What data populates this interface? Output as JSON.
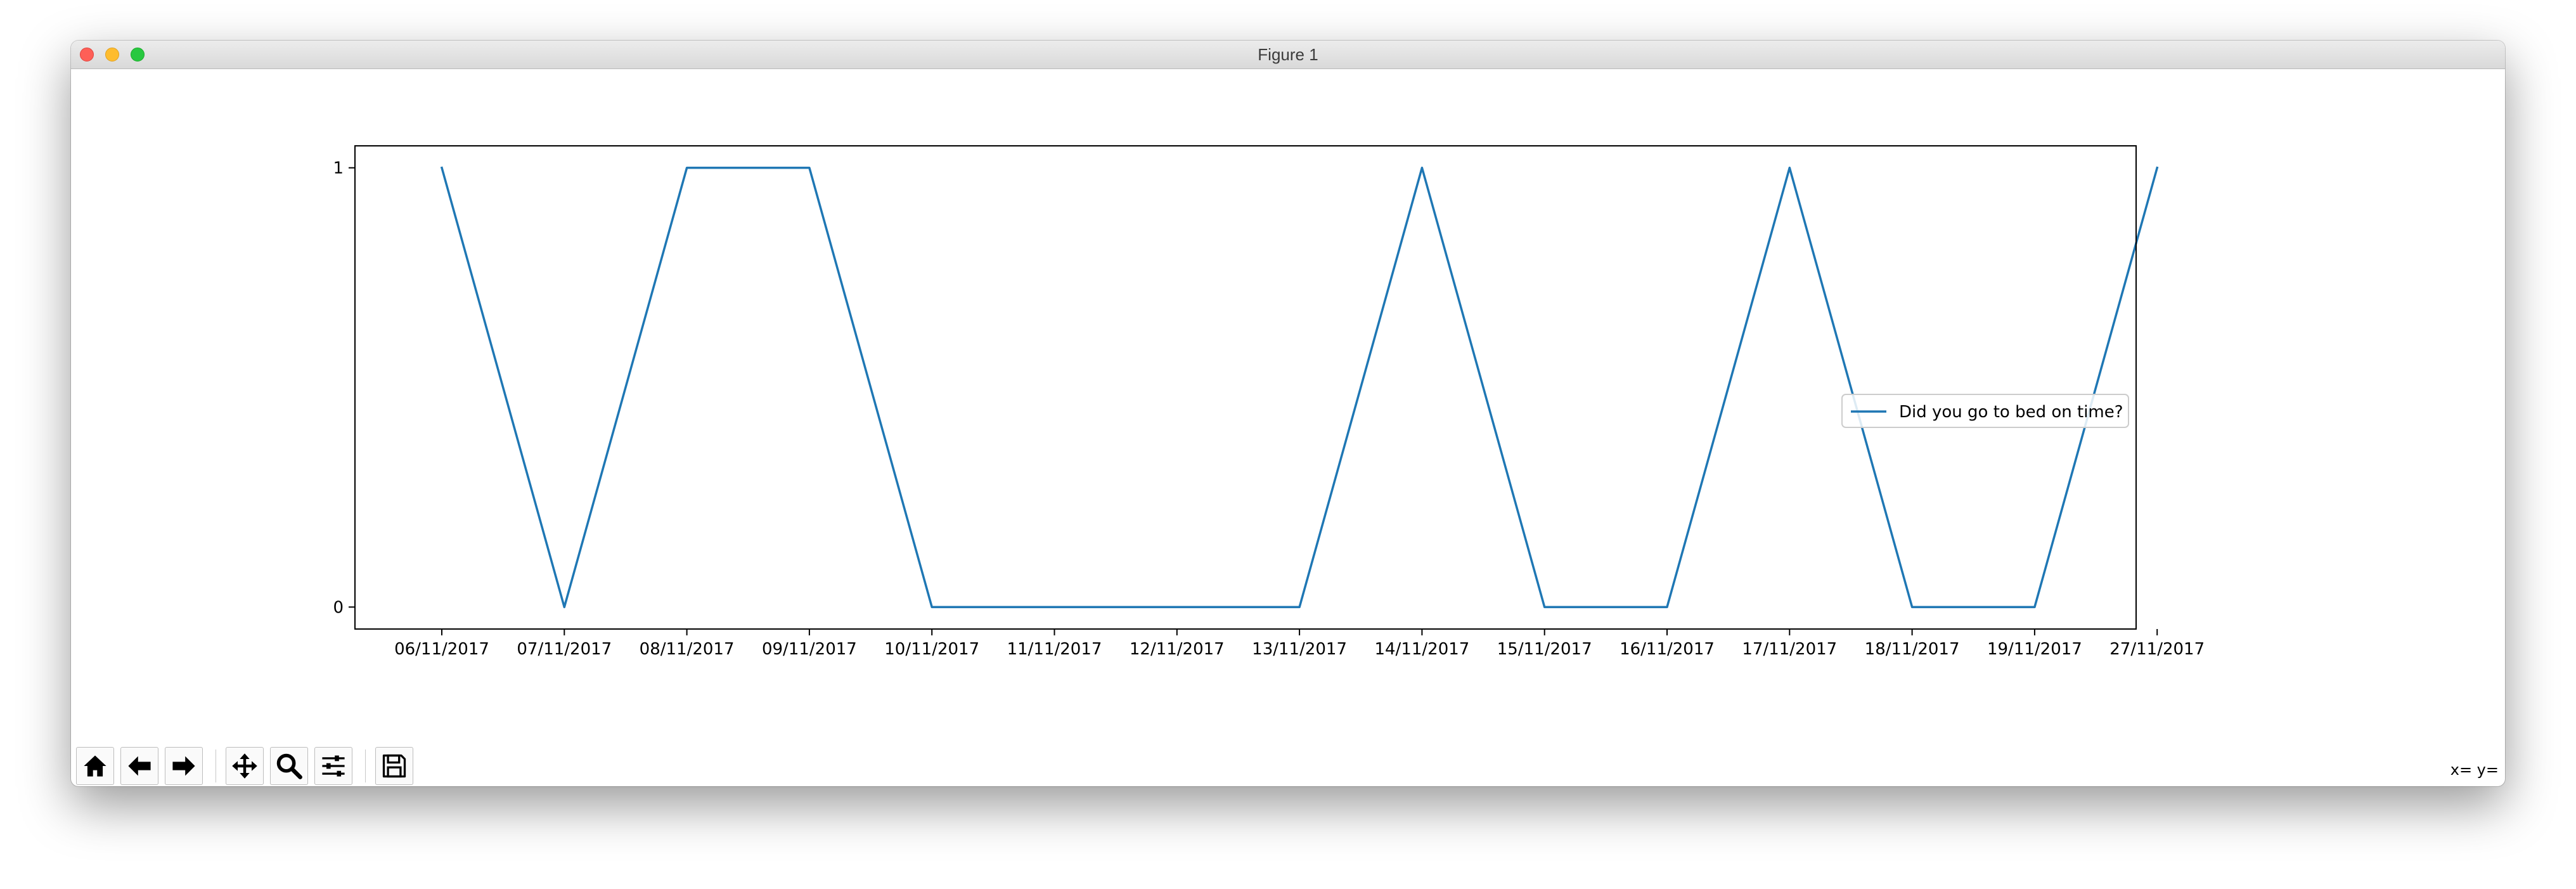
{
  "window": {
    "title": "Figure 1"
  },
  "toolbar": {
    "buttons": [
      {
        "name": "home",
        "icon": "home-icon"
      },
      {
        "name": "back",
        "icon": "arrow-left-icon"
      },
      {
        "name": "forward",
        "icon": "arrow-right-icon"
      },
      {
        "name": "pan",
        "icon": "move-icon"
      },
      {
        "name": "zoom",
        "icon": "magnifier-icon"
      },
      {
        "name": "subplots",
        "icon": "sliders-icon"
      },
      {
        "name": "save",
        "icon": "floppy-disk-icon"
      }
    ],
    "coords_label": "x= y="
  },
  "chart_data": {
    "type": "line",
    "title": "",
    "xlabel": "",
    "ylabel": "",
    "categories": [
      "06/11/2017",
      "07/11/2017",
      "08/11/2017",
      "09/11/2017",
      "10/11/2017",
      "11/11/2017",
      "12/11/2017",
      "13/11/2017",
      "14/11/2017",
      "15/11/2017",
      "16/11/2017",
      "17/11/2017",
      "18/11/2017",
      "19/11/2017",
      "27/11/2017"
    ],
    "series": [
      {
        "name": "Did you go to bed on time?",
        "values": [
          1,
          0,
          1,
          1,
          0,
          0,
          0,
          0,
          1,
          0,
          0,
          1,
          0,
          0,
          1
        ],
        "color": "#1f77b4"
      }
    ],
    "yticks": [
      "0",
      "1"
    ],
    "ylim": [
      -0.05,
      1.05
    ],
    "legend": "center-right",
    "grid": false
  }
}
